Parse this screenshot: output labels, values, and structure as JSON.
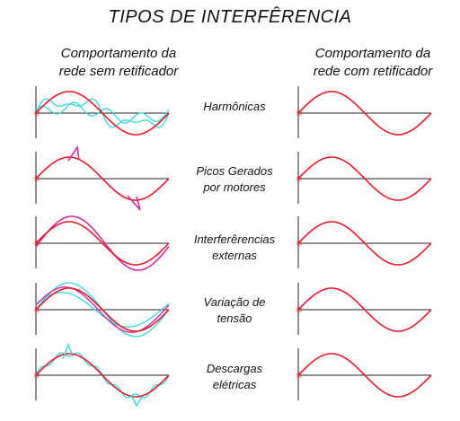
{
  "title": "TIPOS DE INTERFÊRENCIA",
  "columns": {
    "left": {
      "line1": "Comportamento da",
      "line2": "rede sem retificador"
    },
    "right": {
      "line1": "Comportamento da",
      "line2": "rede com retificador"
    }
  },
  "rows": [
    {
      "line1": "Harmônicas",
      "line2": "",
      "type": "harmonics"
    },
    {
      "line1": "Picos Gerados",
      "line2": "por motores",
      "type": "spikes"
    },
    {
      "line1": "Interferêrencias",
      "line2": "externas",
      "type": "external"
    },
    {
      "line1": "Variação de",
      "line2": "tensão",
      "type": "variation"
    },
    {
      "line1": "Descargas",
      "line2": "elétricas",
      "type": "discharge"
    }
  ],
  "colors": {
    "clean_wave": "#e8192c",
    "harmonic": "#33d6dc",
    "interference": "#d42aa6",
    "axis": "#222222"
  }
}
